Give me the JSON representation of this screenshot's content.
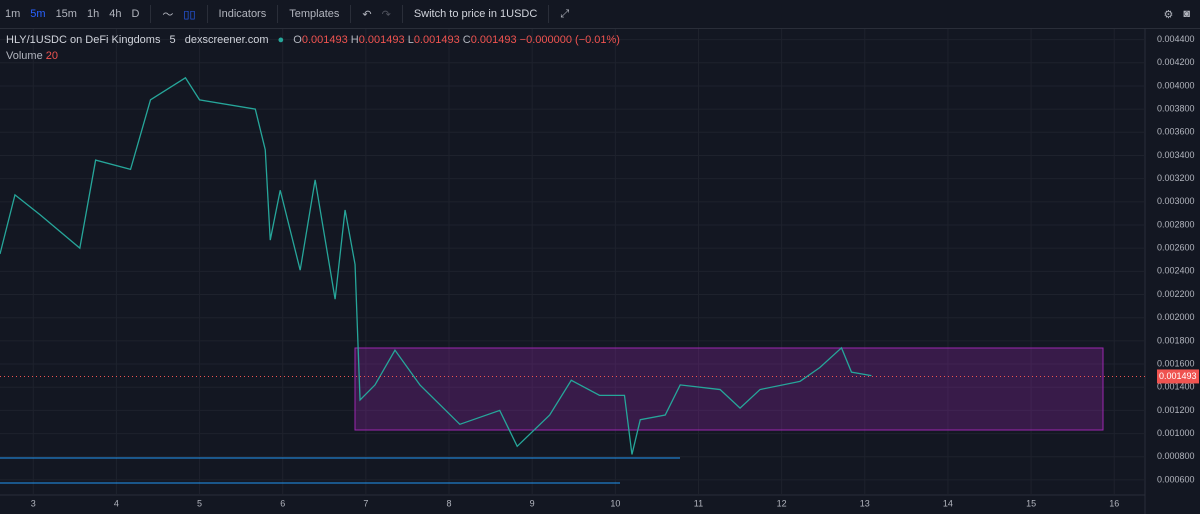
{
  "toolbar": {
    "intervals": [
      "1m",
      "5m",
      "15m",
      "1h",
      "4h",
      "D"
    ],
    "indicators": "Indicators",
    "templates": "Templates",
    "switch": "Switch to price in 1USDC"
  },
  "legend": {
    "symbol": "HLY/1USDC on DeFi Kingdoms",
    "interval": "5",
    "source": "dexscreener.com",
    "ohlc": [
      {
        "label": "O",
        "value": "0.001493"
      },
      {
        "label": "H",
        "value": "0.001493"
      },
      {
        "label": "L",
        "value": "0.001493"
      },
      {
        "label": "C",
        "value": "0.001493"
      }
    ],
    "change": "−0.000000 (−0.01%)",
    "volume_label": "Volume",
    "volume_length": "20"
  },
  "chart_data": {
    "type": "line",
    "x": [
      2.6,
      2.78,
      3.08,
      3.56,
      3.75,
      4.17,
      4.41,
      4.83,
      5.0,
      5.67,
      5.79,
      5.85,
      5.97,
      6.21,
      6.39,
      6.63,
      6.75,
      6.87,
      6.93,
      7.11,
      7.35,
      7.65,
      8.13,
      8.61,
      8.82,
      9.21,
      9.47,
      9.81,
      10.11,
      10.2,
      10.3,
      10.6,
      10.78,
      11.26,
      11.5,
      11.74,
      12.22,
      12.46,
      12.72,
      12.84,
      13.08
    ],
    "series": [
      {
        "name": "HLY/1USDC",
        "color": "#26a69a",
        "values": [
          0.00255,
          0.00306,
          0.00289,
          0.0026,
          0.00336,
          0.00328,
          0.00388,
          0.00407,
          0.00388,
          0.0038,
          0.00345,
          0.00267,
          0.0031,
          0.00241,
          0.00319,
          0.00216,
          0.00293,
          0.00246,
          0.00129,
          0.00142,
          0.00172,
          0.00142,
          0.00108,
          0.0012,
          0.00089,
          0.00116,
          0.00146,
          0.00133,
          0.00133,
          0.00082,
          0.00112,
          0.00116,
          0.00142,
          0.00138,
          0.00122,
          0.00138,
          0.00145,
          0.00157,
          0.00174,
          0.00153,
          0.0015
        ]
      }
    ],
    "xlim": [
      2.6,
      16.37
    ],
    "xticks": [
      3,
      4,
      5,
      6,
      7,
      8,
      9,
      10,
      11,
      12,
      13,
      14,
      15,
      16
    ],
    "ylim": [
      0.00047,
      0.0045
    ],
    "yticks": [
      {
        "value": 0.0006,
        "label": "0.000600"
      },
      {
        "value": 0.0008,
        "label": "0.000800"
      },
      {
        "value": 0.001,
        "label": "0.001000"
      },
      {
        "value": 0.0012,
        "label": "0.001200"
      },
      {
        "value": 0.0014,
        "label": "0.001400"
      },
      {
        "value": 0.0016,
        "label": "0.001600"
      },
      {
        "value": 0.0018,
        "label": "0.001800"
      },
      {
        "value": 0.002,
        "label": "0.002000"
      },
      {
        "value": 0.0022,
        "label": "0.002200"
      },
      {
        "value": 0.0024,
        "label": "0.002400"
      },
      {
        "value": 0.0026,
        "label": "0.002600"
      },
      {
        "value": 0.0028,
        "label": "0.002800"
      },
      {
        "value": 0.003,
        "label": "0.003000"
      },
      {
        "value": 0.0032,
        "label": "0.003200"
      },
      {
        "value": 0.0034,
        "label": "0.003400"
      },
      {
        "value": 0.0036,
        "label": "0.003600"
      },
      {
        "value": 0.0038,
        "label": "0.003800"
      },
      {
        "value": 0.004,
        "label": "0.004000"
      },
      {
        "value": 0.0042,
        "label": "0.004200"
      },
      {
        "value": 0.0044,
        "label": "0.004400"
      }
    ],
    "last_price": {
      "value": 0.001493,
      "label": "0.001493"
    },
    "grid": true
  }
}
